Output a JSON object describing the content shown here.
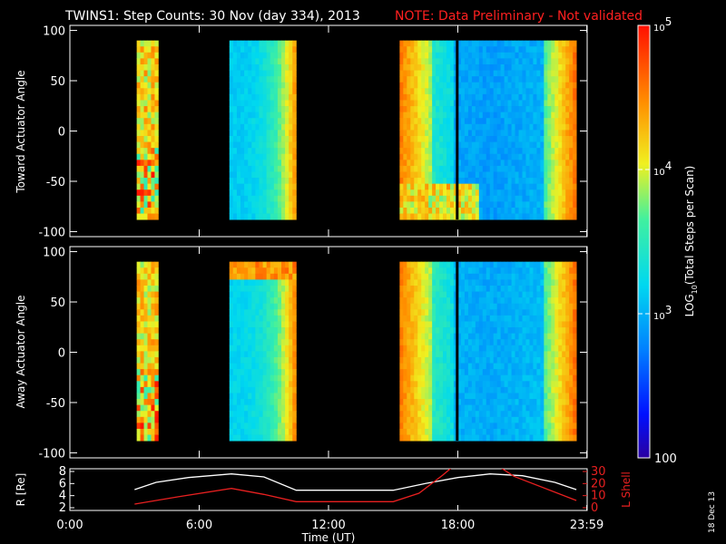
{
  "title": {
    "main": "TWINS1: Step Counts: 30 Nov (day 334), 2013",
    "note": "NOTE: Data Preliminary - Not validated",
    "note_color": "#ff2020"
  },
  "chart_data": [
    {
      "type": "heatmap",
      "name": "toward",
      "ylabel": "Toward Actuator Angle",
      "ylim": [
        -105,
        105
      ],
      "yticks": [
        100,
        50,
        0,
        -50,
        -100
      ],
      "ytick_labels": [
        "100",
        "50",
        "0",
        "-50",
        "-100"
      ],
      "xlim": [
        0,
        24
      ],
      "blocks": [
        {
          "start": 3.1,
          "end": 4.1,
          "level": 0.7,
          "structure": "mixed"
        },
        {
          "start": 7.4,
          "end": 10.5,
          "level": 0.38,
          "structure": "ramp_up"
        },
        {
          "start": 15.3,
          "end": 23.5,
          "level": 0.3,
          "structure": "u_shape"
        }
      ],
      "angle_range": [
        -88,
        90
      ],
      "data_gap_hour": 17.95
    },
    {
      "type": "heatmap",
      "name": "away",
      "ylabel": "Away Actuator Angle",
      "ylim": [
        -105,
        105
      ],
      "yticks": [
        100,
        50,
        0,
        -50,
        -100
      ],
      "ytick_labels": [
        "100",
        "50",
        "0",
        "-50",
        "-100"
      ],
      "xlim": [
        0,
        24
      ],
      "blocks": [
        {
          "start": 3.1,
          "end": 4.1,
          "level": 0.72,
          "structure": "mixed"
        },
        {
          "start": 7.4,
          "end": 10.5,
          "level": 0.4,
          "structure": "ramp_up_hot_top"
        },
        {
          "start": 15.3,
          "end": 23.5,
          "level": 0.32,
          "structure": "u_shape"
        }
      ],
      "angle_range": [
        -88,
        90
      ],
      "data_gap_hour": 17.95
    },
    {
      "type": "line",
      "name": "orbit",
      "left_ylabel": "R [Re]",
      "right_ylabel": "L Shell",
      "left_yticks": [
        "8",
        "6",
        "4",
        "2"
      ],
      "right_yticks": [
        "30",
        "20",
        "10",
        "0"
      ],
      "left_ylim": [
        2,
        8
      ],
      "right_ylim": [
        0,
        30
      ],
      "xlabel": "Time (UT)",
      "xticks": [
        0,
        6,
        12,
        18,
        23.983
      ],
      "xtick_labels": [
        "0:00",
        "6:00",
        "12:00",
        "18:00",
        "23:59"
      ],
      "series": [
        {
          "name": "R",
          "axis": "left",
          "color": "#ffffff",
          "x": [
            3.0,
            4.0,
            5.5,
            7.5,
            9.0,
            10.5,
            15.0,
            16.5,
            18.0,
            19.5,
            21.0,
            22.5,
            23.5
          ],
          "y": [
            5.0,
            6.2,
            7.0,
            7.6,
            7.1,
            4.9,
            4.9,
            6.0,
            7.0,
            7.6,
            7.3,
            6.2,
            5.0
          ]
        },
        {
          "name": "L Shell",
          "axis": "right",
          "color": "#e82020",
          "x": [
            3.0,
            5.0,
            7.5,
            9.0,
            10.5,
            15.0,
            16.2,
            17.3,
            17.7,
            20.0,
            20.6,
            23.5
          ],
          "y": [
            3.0,
            9.0,
            16.0,
            11.0,
            5.0,
            5.0,
            12.0,
            27.0,
            33.0,
            33.0,
            26.0,
            6.0
          ]
        }
      ]
    },
    {
      "type": "colorbar",
      "label": "LOG10(Total Steps per Scan)",
      "label_main": "LOG",
      "label_sub": "10",
      "label_rest": "(Total Steps per Scan)",
      "ticks": [
        {
          "base": "10",
          "exp": "5",
          "level": 1.0
        },
        {
          "base": "10",
          "exp": "4",
          "level": 0.6667
        },
        {
          "base": "10",
          "exp": "3",
          "level": 0.3333
        }
      ],
      "bottom_label": "100"
    }
  ],
  "footer": {
    "date_stamp": "18 Dec 13"
  },
  "colors": {
    "background": "#000000",
    "axes": "#ffffff",
    "r_line": "#ffffff",
    "l_shell_line": "#e82020"
  }
}
